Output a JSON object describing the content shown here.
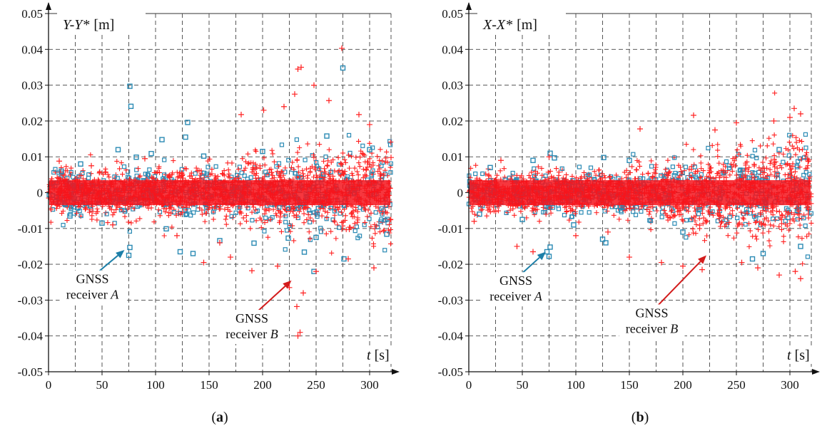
{
  "chart_data": [
    {
      "type": "scatter",
      "panel_label_prefix": "(",
      "panel_label": "a",
      "panel_label_suffix": ")",
      "title": "Y-Y* [m]",
      "title_italic": "Y-Y*",
      "title_unit": "[m]",
      "xlabel_italic": "t",
      "xlabel_unit": "[s]",
      "xlim": [
        0,
        320
      ],
      "ylim": [
        -0.05,
        0.05
      ],
      "xticks": [
        0,
        50,
        100,
        150,
        200,
        250,
        300
      ],
      "xtick_labels": [
        "0",
        "50",
        "100",
        "150",
        "200",
        "250",
        "300"
      ],
      "yticks": [
        0.05,
        0.04,
        0.03,
        0.02,
        0.01,
        0,
        -0.01,
        -0.02,
        -0.03,
        -0.04,
        -0.05
      ],
      "ytick_labels": [
        "0.05",
        "0.04",
        "0.03",
        "0.02",
        "0.01",
        "0",
        "-0.01",
        "-0.02",
        "-0.03",
        "-0.04",
        "-0.05"
      ],
      "grid": true,
      "series": [
        {
          "name": "GNSS receiver A",
          "marker": "square",
          "color": "#2a8ab4",
          "points": [
            [
              76,
              0.0297
            ],
            [
              77,
              0.0241
            ],
            [
              275,
              0.0348
            ],
            [
              130,
              0.0196
            ],
            [
              128,
              0.0155
            ],
            [
              106,
              0.0148
            ],
            [
              260,
              0.0158
            ],
            [
              123,
              -0.0165
            ],
            [
              135,
              -0.017
            ],
            [
              76,
              -0.0153
            ],
            [
              75,
              -0.0175
            ],
            [
              276,
              -0.0185
            ],
            [
              248,
              -0.022
            ],
            [
              239,
              -0.0166
            ],
            [
              160,
              -0.0134
            ],
            [
              192,
              -0.0141
            ],
            [
              224,
              -0.0127
            ],
            [
              250,
              -0.0125
            ],
            [
              316,
              -0.0116
            ],
            [
              65,
              0.012
            ],
            [
              82,
              0.0099
            ],
            [
              96,
              0.0109
            ],
            [
              30,
              0.008
            ],
            [
              20,
              -0.0065
            ],
            [
              12,
              0.006
            ],
            [
              50,
              -0.0085
            ],
            [
              110,
              -0.0101
            ],
            [
              145,
              0.0102
            ],
            [
              200,
              0.0115
            ],
            [
              300,
              0.012
            ]
          ]
        },
        {
          "name": "GNSS receiver B",
          "marker": "plus",
          "color": "#ff2020",
          "points": [
            [
              274,
              0.0403
            ],
            [
              236,
              0.035
            ],
            [
              233,
              0.0345
            ],
            [
              248,
              0.03
            ],
            [
              230,
              0.0275
            ],
            [
              262,
              0.0257
            ],
            [
              220,
              0.024
            ],
            [
              201,
              0.023
            ],
            [
              180,
              0.0218
            ],
            [
              290,
              0.0218
            ],
            [
              300,
              0.019
            ],
            [
              233,
              -0.04
            ],
            [
              235,
              -0.039
            ],
            [
              232,
              -0.0318
            ],
            [
              238,
              -0.028
            ],
            [
              225,
              -0.0265
            ],
            [
              250,
              -0.022
            ],
            [
              214,
              -0.0205
            ],
            [
              190,
              -0.0218
            ],
            [
              170,
              -0.018
            ],
            [
              304,
              -0.021
            ],
            [
              280,
              -0.0185
            ],
            [
              160,
              -0.014
            ],
            [
              145,
              -0.0195
            ],
            [
              120,
              -0.012
            ],
            [
              90,
              0.0095
            ],
            [
              60,
              -0.009
            ],
            [
              40,
              0.0075
            ],
            [
              10,
              0.0088
            ],
            [
              320,
              0.0098
            ]
          ]
        }
      ],
      "annotations": [
        {
          "line1": "GNSS",
          "line2_prefix": "receiver ",
          "line2_italic": "A",
          "color": "#1d7fa8",
          "arrow_from": [
            45,
            -0.0225
          ],
          "arrow_to": [
            71,
            -0.016
          ]
        },
        {
          "line1": "GNSS",
          "line2_prefix": "receiver ",
          "line2_italic": "B",
          "color": "#d31c1c",
          "arrow_from": [
            194,
            -0.0335
          ],
          "arrow_to": [
            227,
            -0.0245
          ]
        }
      ]
    },
    {
      "type": "scatter",
      "panel_label_prefix": "(",
      "panel_label": "b",
      "panel_label_suffix": ")",
      "title": "X-X* [m]",
      "title_italic": "X-X*",
      "title_unit": "[m]",
      "xlabel_italic": "t",
      "xlabel_unit": "[s]",
      "xlim": [
        0,
        320
      ],
      "ylim": [
        -0.05,
        0.05
      ],
      "xticks": [
        0,
        50,
        100,
        150,
        200,
        250,
        300
      ],
      "xtick_labels": [
        "0",
        "50",
        "100",
        "150",
        "200",
        "250",
        "300"
      ],
      "yticks": [
        0.05,
        0.04,
        0.03,
        0.02,
        0.01,
        0,
        -0.01,
        -0.02,
        -0.03,
        -0.04,
        -0.05
      ],
      "ytick_labels": [
        "0.05",
        "0.04",
        "0.03",
        "0.02",
        "0.01",
        "0",
        "-0.01",
        "-0.02",
        "-0.03",
        "-0.04",
        "-0.05"
      ],
      "grid": true,
      "series": [
        {
          "name": "GNSS receiver A",
          "marker": "square",
          "color": "#2a8ab4",
          "points": [
            [
              76,
              0.011
            ],
            [
              80,
              0.0097
            ],
            [
              60,
              0.009
            ],
            [
              126,
              0.0098
            ],
            [
              76,
              -0.0152
            ],
            [
              75,
              -0.0178
            ],
            [
              73,
              -0.0165
            ],
            [
              125,
              -0.013
            ],
            [
              128,
              -0.014
            ],
            [
              98,
              -0.009
            ],
            [
              50,
              -0.0075
            ],
            [
              275,
              -0.017
            ],
            [
              265,
              -0.0185
            ],
            [
              310,
              -0.015
            ],
            [
              290,
              0.012
            ],
            [
              200,
              -0.011
            ],
            [
              150,
              0.009
            ],
            [
              20,
              0.007
            ],
            [
              10,
              -0.006
            ]
          ]
        },
        {
          "name": "GNSS receiver B",
          "marker": "plus",
          "color": "#ff2020",
          "points": [
            [
              304,
              0.0235
            ],
            [
              310,
              0.022
            ],
            [
              300,
              0.021
            ],
            [
              285,
              0.02
            ],
            [
              210,
              0.0216
            ],
            [
              160,
              0.0178
            ],
            [
              250,
              0.0195
            ],
            [
              230,
              0.0175
            ],
            [
              310,
              -0.024
            ],
            [
              290,
              -0.023
            ],
            [
              305,
              -0.022
            ],
            [
              218,
              -0.0215
            ],
            [
              200,
              -0.0205
            ],
            [
              180,
              -0.0195
            ],
            [
              150,
              -0.018
            ],
            [
              270,
              -0.021
            ],
            [
              255,
              -0.0195
            ],
            [
              60,
              -0.0165
            ],
            [
              45,
              -0.015
            ],
            [
              100,
              -0.012
            ],
            [
              130,
              -0.011
            ],
            [
              75,
              0.01
            ],
            [
              30,
              0.009
            ],
            [
              5,
              -0.008
            ]
          ]
        }
      ],
      "annotations": [
        {
          "line1": "GNSS",
          "line2_prefix": "receiver ",
          "line2_italic": "A",
          "color": "#1d7fa8",
          "arrow_from": [
            48,
            -0.023
          ],
          "arrow_to": [
            72,
            -0.0165
          ]
        },
        {
          "line1": "GNSS",
          "line2_prefix": "receiver ",
          "line2_italic": "B",
          "color": "#d31c1c",
          "arrow_from": [
            175,
            -0.032
          ],
          "arrow_to": [
            222,
            -0.0175
          ]
        }
      ]
    }
  ]
}
